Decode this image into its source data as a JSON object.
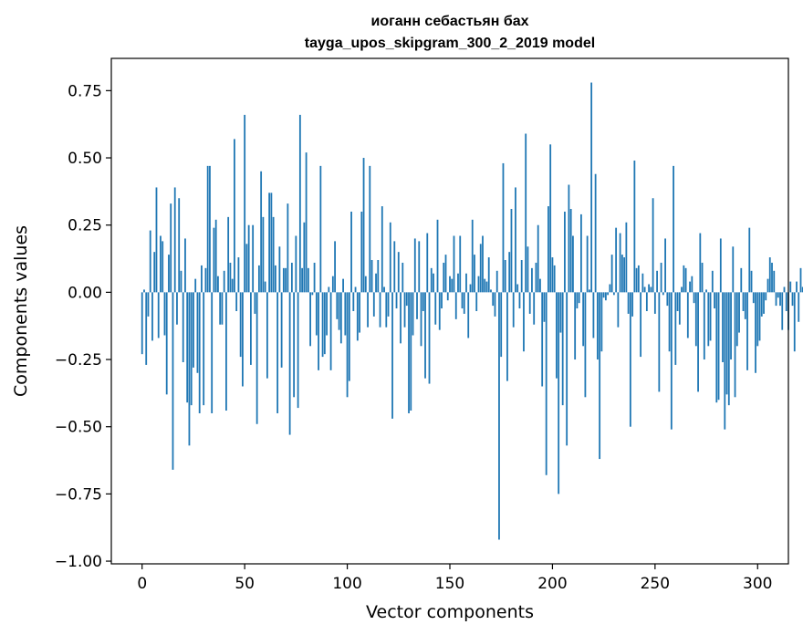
{
  "chart_data": {
    "type": "bar",
    "title": "иоганн себастьян бах",
    "subtitle": "tayga_upos_skipgram_300_2_2019 model",
    "xlabel": "Vector components",
    "ylabel": "Components values",
    "xlim": [
      -15,
      315
    ],
    "ylim": [
      -1.01,
      0.87
    ],
    "xticks": [
      0,
      50,
      100,
      150,
      200,
      250,
      300
    ],
    "xtick_labels": [
      "0",
      "50",
      "100",
      "150",
      "200",
      "250",
      "300"
    ],
    "yticks": [
      -1.0,
      -0.75,
      -0.5,
      -0.25,
      0.0,
      0.25,
      0.5,
      0.75
    ],
    "ytick_labels": [
      "−1.00",
      "−0.75",
      "−0.50",
      "−0.25",
      "0.00",
      "0.25",
      "0.50",
      "0.75"
    ],
    "grid": false,
    "bar_color": "#1f77b4",
    "values": [
      -0.23,
      0.01,
      -0.27,
      -0.09,
      0.23,
      -0.18,
      0.15,
      0.39,
      -0.17,
      0.21,
      0.19,
      -0.16,
      -0.38,
      0.14,
      0.33,
      -0.66,
      0.39,
      -0.12,
      0.35,
      0.08,
      -0.26,
      0.2,
      -0.41,
      -0.57,
      -0.42,
      -0.28,
      0.05,
      -0.3,
      -0.45,
      0.1,
      -0.42,
      0.09,
      0.47,
      0.47,
      -0.45,
      0.24,
      0.27,
      0.06,
      -0.12,
      -0.12,
      0.08,
      -0.44,
      0.28,
      0.11,
      0.05,
      0.57,
      -0.07,
      0.13,
      -0.24,
      -0.35,
      0.66,
      0.18,
      0.25,
      -0.27,
      0.25,
      -0.08,
      -0.49,
      0.1,
      0.45,
      0.28,
      0.04,
      -0.32,
      0.37,
      0.37,
      0.28,
      0.1,
      -0.45,
      0.17,
      -0.28,
      0.09,
      0.09,
      0.33,
      -0.53,
      0.11,
      -0.39,
      0.21,
      -0.43,
      0.66,
      0.09,
      0.26,
      0.52,
      0.09,
      -0.2,
      -0.01,
      0.11,
      -0.16,
      -0.29,
      0.47,
      -0.24,
      -0.23,
      -0.16,
      0.02,
      -0.29,
      0.06,
      0.19,
      -0.1,
      -0.14,
      -0.19,
      0.05,
      -0.16,
      -0.39,
      -0.33,
      0.3,
      -0.07,
      0.02,
      -0.18,
      -0.15,
      0.3,
      0.5,
      0.06,
      -0.13,
      0.47,
      0.12,
      -0.09,
      0.07,
      0.12,
      -0.13,
      0.32,
      0.02,
      -0.13,
      -0.09,
      0.26,
      -0.47,
      0.19,
      -0.06,
      0.15,
      -0.19,
      0.11,
      -0.13,
      -0.05,
      -0.45,
      -0.44,
      -0.16,
      0.2,
      -0.1,
      0.19,
      -0.2,
      -0.07,
      -0.32,
      0.22,
      -0.34,
      0.09,
      0.07,
      -0.12,
      0.27,
      -0.14,
      -0.06,
      0.11,
      0.14,
      -0.03,
      0.06,
      0.05,
      0.21,
      -0.1,
      0.07,
      0.21,
      -0.06,
      -0.08,
      0.07,
      -0.17,
      0.03,
      0.27,
      0.14,
      -0.07,
      0.06,
      0.18,
      0.21,
      0.05,
      0.04,
      0.13,
      0.01,
      -0.05,
      -0.09,
      0.08,
      -0.92,
      -0.24,
      0.48,
      0.12,
      -0.33,
      0.15,
      0.31,
      -0.13,
      0.39,
      0.03,
      -0.06,
      0.12,
      -0.22,
      0.59,
      0.17,
      -0.08,
      0.09,
      -0.12,
      0.11,
      0.25,
      0.05,
      -0.35,
      -0.11,
      -0.68,
      0.32,
      0.55,
      0.13,
      0.1,
      -0.32,
      -0.75,
      -0.15,
      -0.42,
      0.3,
      -0.57,
      0.4,
      0.31,
      0.21,
      -0.25,
      -0.06,
      -0.04,
      0.29,
      -0.2,
      -0.39,
      0.21,
      0.01,
      0.78,
      -0.17,
      0.44,
      -0.25,
      -0.62,
      -0.22,
      -0.02,
      -0.03,
      -0.01,
      0.03,
      0.14,
      -0.01,
      0.24,
      -0.13,
      0.22,
      0.14,
      0.13,
      0.26,
      -0.08,
      -0.5,
      -0.09,
      0.49,
      0.09,
      0.1,
      -0.24,
      0.07,
      0.02,
      -0.07,
      0.03,
      0.02,
      0.35,
      -0.08,
      0.08,
      -0.37,
      0.11,
      -0.01,
      0.2,
      -0.05,
      -0.22,
      -0.51,
      0.47,
      -0.27,
      -0.07,
      -0.12,
      0.02,
      0.1,
      0.09,
      -0.17,
      0.04,
      0.06,
      -0.04,
      -0.2,
      -0.37,
      0.22,
      0.11,
      -0.25,
      0.01,
      -0.2,
      -0.18,
      0.08,
      -0.06,
      -0.41,
      -0.4,
      0.2,
      -0.26,
      -0.51,
      -0.38,
      -0.42,
      -0.25,
      0.17,
      -0.39,
      -0.2,
      -0.15,
      0.09,
      -0.07,
      -0.1,
      -0.29,
      0.24,
      0.08,
      -0.04,
      -0.3,
      -0.2,
      -0.18,
      -0.09,
      -0.08,
      -0.03,
      0.05,
      0.13,
      0.11,
      0.08,
      -0.05,
      -0.02,
      -0.05,
      -0.14,
      0.02,
      -0.07,
      -0.14,
      0.04,
      -0.05,
      -0.22,
      0.04,
      -0.11,
      0.09,
      0.02,
      -0.05,
      0.06,
      -0.03,
      -0.02,
      0.01
    ]
  }
}
